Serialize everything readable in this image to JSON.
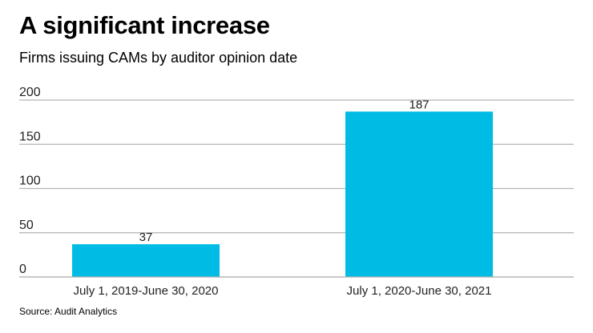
{
  "title": "A significant increase",
  "subtitle": "Firms issuing CAMs by auditor opinion date",
  "source": "Source: Audit Analytics",
  "colors": {
    "bar": "#00bce4",
    "grid": "#b3b3b3"
  },
  "chart_data": {
    "type": "bar",
    "title": "A significant increase",
    "subtitle": "Firms issuing CAMs by auditor opinion date",
    "categories": [
      "July 1, 2019-June 30, 2020",
      "July 1, 2020-June 30, 2021"
    ],
    "values": [
      37,
      187
    ],
    "data_labels": [
      "37",
      "187"
    ],
    "yticks": [
      0,
      50,
      100,
      150,
      200
    ],
    "ytick_labels": [
      "0",
      "50",
      "100",
      "150",
      "200"
    ],
    "ylim": [
      0,
      200
    ],
    "xlabel": "",
    "ylabel": "",
    "grid": true
  }
}
